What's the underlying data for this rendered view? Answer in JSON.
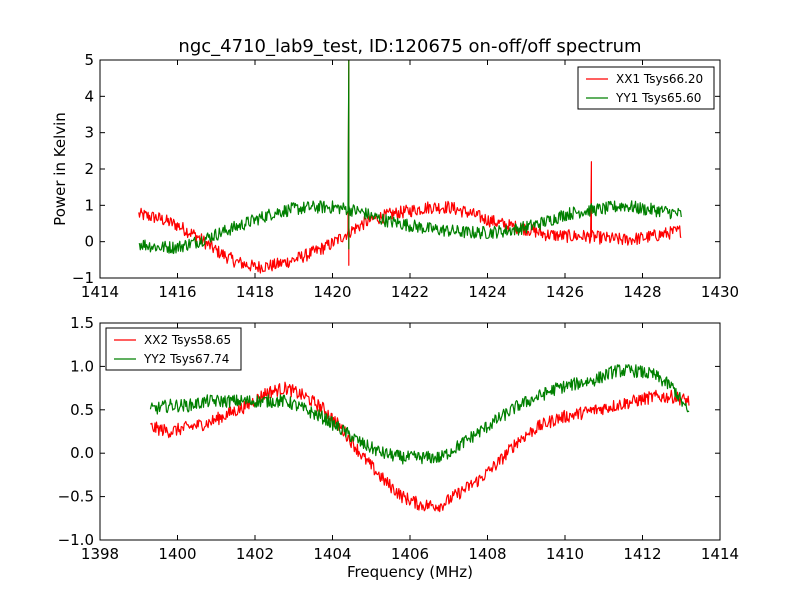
{
  "figure": {
    "title": "ngc_4710_lab9_test, ID:120675 on-off/off spectrum",
    "colors": {
      "red": "#ff0000",
      "green": "#008000"
    }
  },
  "chart_data": [
    {
      "type": "line",
      "title": "ngc_4710_lab9_test, ID:120675 on-off/off spectrum",
      "xlabel": "",
      "ylabel": "Power in Kelvin",
      "xlim": [
        1414,
        1430
      ],
      "ylim": [
        -1,
        5
      ],
      "xticks": [
        "1414",
        "1416",
        "1418",
        "1420",
        "1422",
        "1424",
        "1426",
        "1428",
        "1430"
      ],
      "yticks": [
        "−1",
        "0",
        "1",
        "2",
        "3",
        "4",
        "5"
      ],
      "grid": false,
      "legend_position": "top-right",
      "series": [
        {
          "name": "XX1 Tsys66.20",
          "color": "#ff0000",
          "x": [
            1415.0,
            1415.5,
            1416.0,
            1416.5,
            1417.0,
            1417.5,
            1418.0,
            1418.5,
            1419.0,
            1419.5,
            1420.0,
            1420.4,
            1420.8,
            1421.0,
            1421.5,
            1422.0,
            1422.5,
            1423.0,
            1423.5,
            1424.0,
            1424.5,
            1425.0,
            1425.5,
            1426.0,
            1426.5,
            1427.0,
            1427.5,
            1428.0,
            1428.5,
            1429.0
          ],
          "values": [
            0.75,
            0.65,
            0.45,
            0.15,
            -0.25,
            -0.55,
            -0.7,
            -0.65,
            -0.5,
            -0.3,
            -0.05,
            0.25,
            0.5,
            0.6,
            0.75,
            0.85,
            0.95,
            0.95,
            0.8,
            0.6,
            0.45,
            0.35,
            0.2,
            0.15,
            0.15,
            0.1,
            0.05,
            0.1,
            0.2,
            0.3
          ],
          "spikes": [
            {
              "x": 1420.42,
              "values": [
                5.0,
                -0.65
              ]
            },
            {
              "x": 1426.68,
              "values": [
                2.2
              ]
            }
          ]
        },
        {
          "name": "YY1 Tsys65.60",
          "color": "#008000",
          "x": [
            1415.0,
            1415.5,
            1416.0,
            1416.5,
            1417.0,
            1417.5,
            1418.0,
            1418.5,
            1419.0,
            1419.5,
            1420.0,
            1420.4,
            1420.8,
            1421.0,
            1421.5,
            1422.0,
            1422.5,
            1423.0,
            1423.5,
            1424.0,
            1424.5,
            1425.0,
            1425.5,
            1426.0,
            1426.5,
            1427.0,
            1427.5,
            1428.0,
            1428.5,
            1429.0
          ],
          "values": [
            -0.05,
            -0.15,
            -0.15,
            0.0,
            0.2,
            0.4,
            0.6,
            0.8,
            0.9,
            0.95,
            0.95,
            0.9,
            0.8,
            0.7,
            0.55,
            0.45,
            0.35,
            0.3,
            0.25,
            0.25,
            0.3,
            0.4,
            0.55,
            0.75,
            0.85,
            0.9,
            1.0,
            0.9,
            0.85,
            0.75
          ],
          "spikes": [
            {
              "x": 1420.42,
              "values": [
                5.0,
                -0.2
              ]
            }
          ]
        }
      ]
    },
    {
      "type": "line",
      "title": "",
      "xlabel": "Frequency (MHz)",
      "ylabel": "",
      "xlim": [
        1398,
        1414
      ],
      "ylim": [
        -1.0,
        1.5
      ],
      "xticks": [
        "1398",
        "1400",
        "1402",
        "1404",
        "1406",
        "1408",
        "1410",
        "1412",
        "1414"
      ],
      "yticks": [
        "−1.0",
        "−0.5",
        "0.0",
        "0.5",
        "1.0",
        "1.5"
      ],
      "grid": false,
      "legend_position": "top-left",
      "series": [
        {
          "name": "XX2 Tsys58.65",
          "color": "#ff0000",
          "x": [
            1399.3,
            1399.8,
            1400.3,
            1400.8,
            1401.3,
            1401.8,
            1402.3,
            1402.8,
            1403.3,
            1403.8,
            1404.3,
            1404.8,
            1405.3,
            1405.8,
            1406.3,
            1406.8,
            1407.3,
            1407.8,
            1408.3,
            1408.8,
            1409.3,
            1409.8,
            1410.3,
            1410.8,
            1411.3,
            1411.8,
            1412.3,
            1412.8,
            1413.2
          ],
          "values": [
            0.3,
            0.25,
            0.3,
            0.35,
            0.45,
            0.55,
            0.7,
            0.75,
            0.65,
            0.5,
            0.25,
            -0.05,
            -0.3,
            -0.5,
            -0.6,
            -0.6,
            -0.45,
            -0.3,
            -0.1,
            0.15,
            0.3,
            0.4,
            0.45,
            0.5,
            0.55,
            0.6,
            0.65,
            0.65,
            0.6
          ]
        },
        {
          "name": "YY2 Tsys67.74",
          "color": "#008000",
          "x": [
            1399.3,
            1399.8,
            1400.3,
            1400.8,
            1401.3,
            1401.8,
            1402.3,
            1402.8,
            1403.3,
            1403.8,
            1404.3,
            1404.8,
            1405.3,
            1405.8,
            1406.3,
            1406.8,
            1407.3,
            1407.8,
            1408.3,
            1408.8,
            1409.3,
            1409.8,
            1410.3,
            1410.8,
            1411.3,
            1411.8,
            1412.3,
            1412.8,
            1413.2
          ],
          "values": [
            0.5,
            0.55,
            0.55,
            0.6,
            0.6,
            0.6,
            0.6,
            0.6,
            0.5,
            0.4,
            0.25,
            0.1,
            0.0,
            -0.05,
            -0.05,
            -0.05,
            0.1,
            0.25,
            0.4,
            0.55,
            0.65,
            0.75,
            0.8,
            0.85,
            0.95,
            0.95,
            0.9,
            0.75,
            0.45
          ]
        }
      ]
    }
  ]
}
